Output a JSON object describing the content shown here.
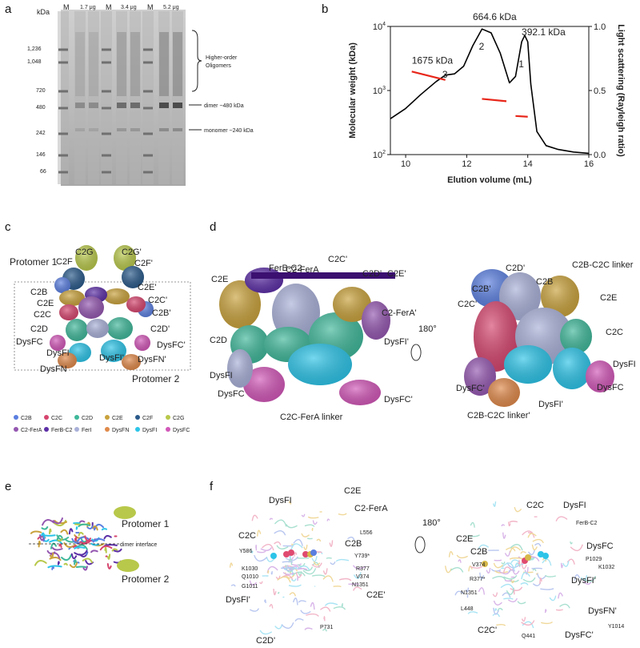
{
  "panel_letters": {
    "a": "a",
    "b": "b",
    "c": "c",
    "d": "d",
    "e": "e",
    "f": "f"
  },
  "colors": {
    "C2B": "#5b7fe0",
    "C2C": "#d6456e",
    "C2D": "#3fb89a",
    "C2E": "#c9a23c",
    "C2F": "#2a5a8a",
    "C2G": "#b8c84a",
    "C2-FerA": "#9457b0",
    "FerB-C2": "#5c2fa6",
    "FerI": "#a9b0d8",
    "DysFN": "#e0894a",
    "DysFI": "#2cc4e8",
    "DysFC": "#d257b8"
  },
  "panel_a": {
    "kda_header": "kDa",
    "lane_headers": [
      "M",
      "1.7 μg",
      "M",
      "3.4 μg",
      "M",
      "5.2 μg"
    ],
    "markers": [
      "1,236",
      "1,048",
      "720",
      "480",
      "242",
      "146",
      "66"
    ],
    "annotations": {
      "oligomers_line1": "Higher-order",
      "oligomers_line2": "Oligomers",
      "dimer": "dimer ~480 kDa",
      "monomer": "monomer ~240 kDa"
    }
  },
  "chart_data": {
    "type": "line",
    "xlabel": "Elution volume (mL)",
    "ylabel_left": "Molecular weight (kDa)",
    "ylabel_right": "Light scattering (Rayleigh ratio)",
    "xlim": [
      9.5,
      16
    ],
    "x_ticks": [
      "10",
      "12",
      "14",
      "16"
    ],
    "y_left_scale": "log",
    "y_left_ticks": [
      "10^2",
      "10^3",
      "10^4"
    ],
    "y_left_lim": [
      100,
      10000
    ],
    "y_right_lim": [
      0,
      1.0
    ],
    "y_right_ticks": [
      "0.0",
      "0.5",
      "1.0"
    ],
    "series": [
      {
        "role": "light_scattering",
        "color": "#000000",
        "x": [
          9.5,
          10,
          10.5,
          11,
          11.3,
          11.6,
          11.9,
          12.2,
          12.5,
          12.8,
          13.1,
          13.4,
          13.6,
          13.8,
          13.9,
          14.0,
          14.1,
          14.3,
          14.6,
          15.0,
          15.5,
          16.0
        ],
        "y": [
          0.28,
          0.36,
          0.47,
          0.57,
          0.62,
          0.63,
          0.69,
          0.85,
          0.98,
          0.95,
          0.79,
          0.56,
          0.61,
          0.88,
          0.93,
          0.88,
          0.55,
          0.18,
          0.07,
          0.04,
          0.02,
          0.01
        ]
      },
      {
        "role": "molecular_weight",
        "color": "#e8261a",
        "segments": [
          {
            "x": [
              10.2,
              11.3
            ],
            "y": [
              1980,
              1460
            ]
          },
          {
            "x": [
              12.5,
              13.3
            ],
            "y": [
              740,
              680
            ]
          },
          {
            "x": [
              13.6,
              14.0
            ],
            "y": [
              400,
              390
            ]
          }
        ]
      }
    ],
    "peak_labels": [
      {
        "text": "1675 kDa",
        "x": 10.2,
        "y": 0.71
      },
      {
        "text": "664.6 kDa",
        "x": 12.2,
        "y": 1.05
      },
      {
        "text": "392.1 kDa",
        "x": 13.8,
        "y": 0.93
      }
    ],
    "peak_numbers": [
      {
        "text": "3",
        "x": 11.2,
        "y": 0.6
      },
      {
        "text": "2",
        "x": 12.4,
        "y": 0.82
      },
      {
        "text": "1",
        "x": 13.7,
        "y": 0.68
      }
    ]
  },
  "panel_c": {
    "protomer1": "Protomer 1",
    "protomer2": "Protomer 2",
    "labels": [
      "C2G",
      "C2G'",
      "C2F",
      "C2F'",
      "C2B",
      "C2E",
      "C2E'",
      "C2C'",
      "C2C",
      "C2B'",
      "C2D",
      "C2D'",
      "DysFC",
      "DysFC'",
      "DysFI",
      "DysFI'",
      "DysFN",
      "DysFN'"
    ],
    "legend": [
      "C2B",
      "C2C",
      "C2D",
      "C2E",
      "C2F",
      "C2G",
      "C2-FerA",
      "FerB-C2",
      "FerI",
      "DysFN",
      "DysFI",
      "DysFC"
    ]
  },
  "panel_d": {
    "left_labels": [
      "FerB-C2",
      "C2-FerA",
      "C2C'",
      "C2D'",
      "C2E",
      "C2E'",
      "C2-FerA'",
      "C2D",
      "DysFI'",
      "DysFI",
      "DysFC",
      "DysFC'",
      "C2C-FerA linker"
    ],
    "right_labels": [
      "C2D'",
      "C2B'",
      "C2B",
      "C2B-C2C linker",
      "C2C'",
      "C2E",
      "C2C",
      "DysFI",
      "DysFC'",
      "DysFC",
      "C2B-C2C linker'",
      "DysFI'"
    ],
    "rotation": "180°"
  },
  "panel_e": {
    "protomer1": "Protomer 1",
    "protomer2": "Protomer 2",
    "interface": "dimer interface"
  },
  "panel_f": {
    "left_labels": [
      "C2E",
      "DysFI",
      "C2-FerA",
      "L556",
      "C2C",
      "C2B",
      "Y586",
      "Y739*",
      "R377",
      "K1030",
      "V374",
      "Q1010",
      "N1351",
      "G1011",
      "C2E'",
      "DysFI'",
      "P731",
      "C2D'"
    ],
    "right_labels": [
      "C2C",
      "DysFI",
      "FerB-C2",
      "C2E",
      "DysFC",
      "C2B",
      "V374",
      "P1029",
      "R377*",
      "K1032",
      "N1351",
      "DysFI'",
      "L448",
      "DysFN'",
      "Y1014",
      "C2C'",
      "Q441",
      "DysFC'"
    ],
    "rotation": "180°"
  }
}
